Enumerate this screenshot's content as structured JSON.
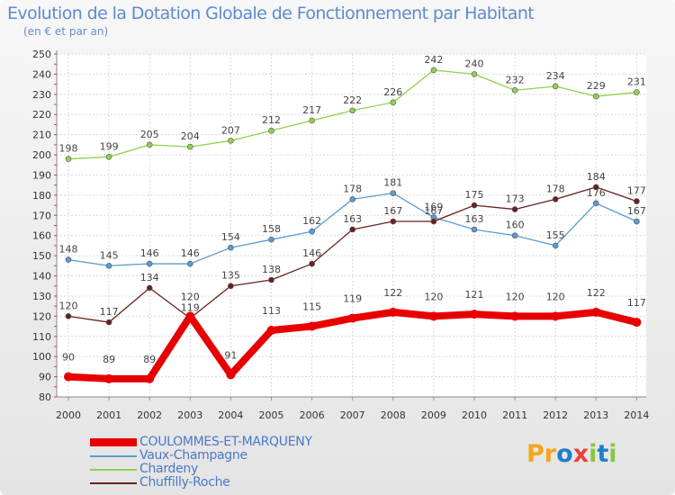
{
  "title": "Evolution de la Dotation Globale de Fonctionnement par Habitant",
  "subtitle": "(en € et par an)",
  "logo_text": "Proxiti",
  "chart_data": {
    "type": "line",
    "title": "Evolution de la Dotation Globale de Fonctionnement par Habitant",
    "subtitle": "(en € et par an)",
    "xlabel": "",
    "ylabel": "",
    "ylim": [
      80,
      250
    ],
    "yticks": [
      80,
      90,
      100,
      110,
      120,
      130,
      140,
      150,
      160,
      170,
      180,
      190,
      200,
      210,
      220,
      230,
      240,
      250
    ],
    "grid": true,
    "legend_position": "bottom-left",
    "categories": [
      "2000",
      "2001",
      "2002",
      "2003",
      "2004",
      "2005",
      "2006",
      "2007",
      "2008",
      "2009",
      "2010",
      "2011",
      "2012",
      "2013",
      "2014"
    ],
    "series": [
      {
        "name": "COULOMMES-ET-MARQUENY",
        "color": "#e80000",
        "values": [
          90,
          89,
          89,
          120,
          91,
          113,
          115,
          119,
          122,
          120,
          121,
          120,
          120,
          122,
          117
        ]
      },
      {
        "name": "Vaux-Champagne",
        "color": "#5b9bd5",
        "values": [
          148,
          145,
          146,
          146,
          154,
          158,
          162,
          178,
          181,
          169,
          163,
          160,
          155,
          176,
          167
        ]
      },
      {
        "name": "Chardeny",
        "color": "#8fd14f",
        "values": [
          198,
          199,
          205,
          204,
          207,
          212,
          217,
          222,
          226,
          242,
          240,
          232,
          234,
          229,
          231
        ]
      },
      {
        "name": "Chuffilly-Roche",
        "color": "#6b1f1f",
        "values": [
          120,
          117,
          134,
          119,
          135,
          138,
          146,
          163,
          167,
          167,
          175,
          173,
          178,
          184,
          177
        ]
      }
    ]
  }
}
